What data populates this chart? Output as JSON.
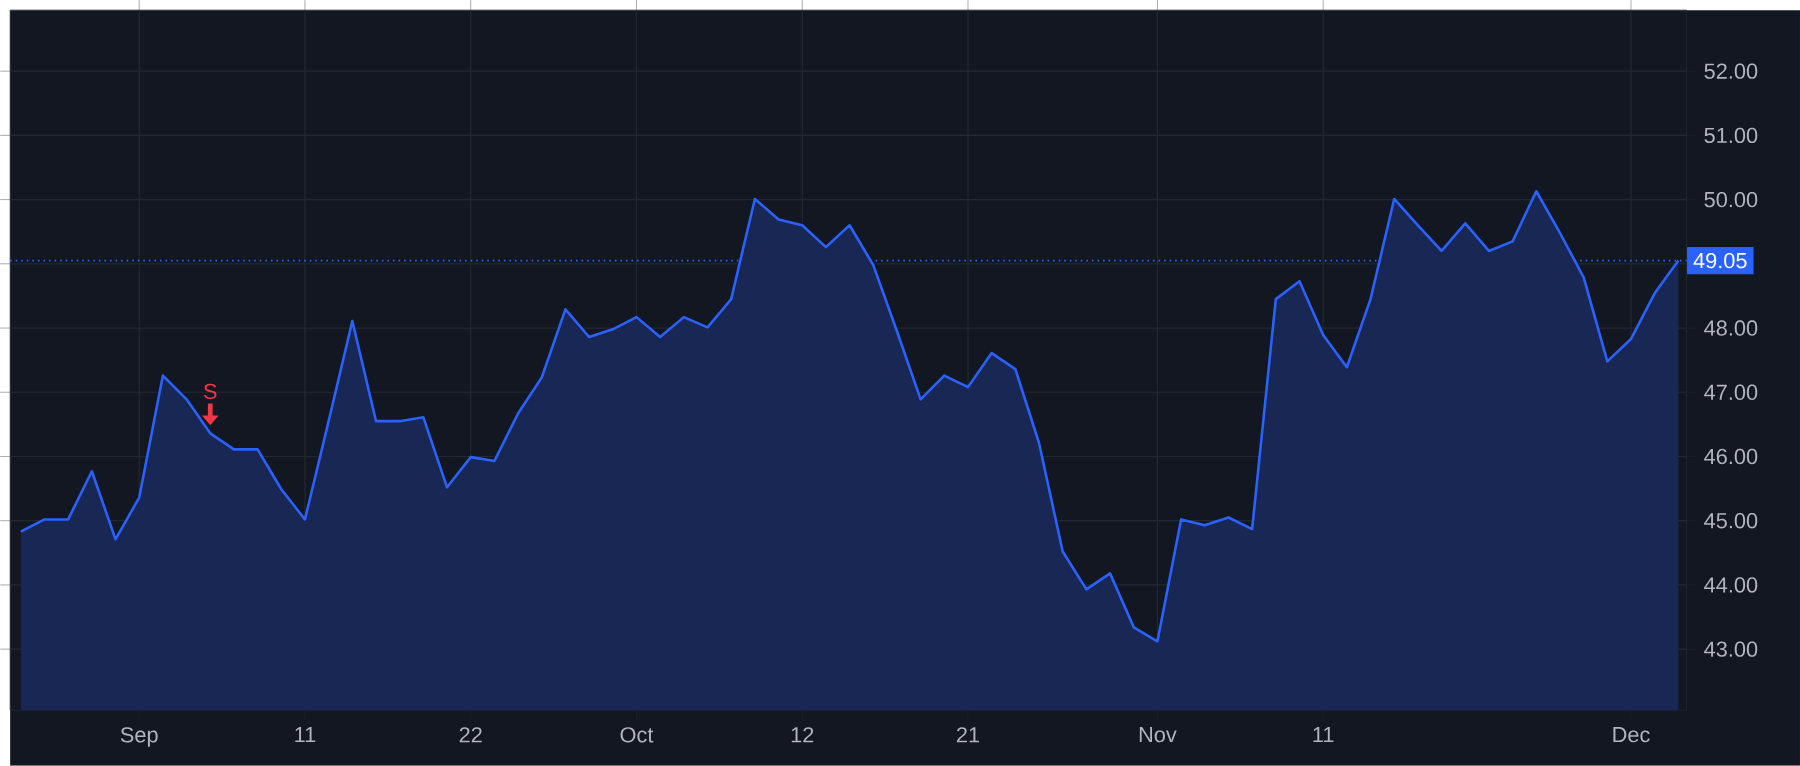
{
  "chart_data": {
    "type": "area",
    "categories": [
      null,
      null,
      null,
      null,
      null,
      "Sep",
      null,
      null,
      null,
      null,
      null,
      null,
      "11",
      null,
      null,
      null,
      null,
      null,
      null,
      "22",
      null,
      null,
      null,
      null,
      null,
      null,
      "Oct",
      null,
      null,
      null,
      null,
      null,
      null,
      "12",
      null,
      null,
      null,
      null,
      null,
      null,
      "21",
      null,
      null,
      null,
      null,
      null,
      null,
      null,
      "Nov",
      null,
      null,
      null,
      null,
      null,
      null,
      "11",
      null,
      null,
      null,
      null,
      null,
      null,
      null,
      null,
      null,
      null,
      null,
      null,
      "Dec",
      null,
      null
    ],
    "series": [
      {
        "color": "#2962ff",
        "values": [
          44.83,
          45.02,
          45.02,
          45.77,
          44.71,
          45.36,
          47.26,
          46.89,
          46.36,
          46.11,
          46.11,
          45.49,
          45.02,
          46.55,
          48.11,
          46.55,
          46.55,
          46.61,
          45.52,
          45.99,
          45.93,
          46.67,
          47.23,
          48.29,
          47.86,
          47.98,
          48.17,
          47.86,
          48.17,
          48.01,
          48.45,
          50.01,
          49.69,
          49.6,
          49.26,
          49.6,
          48.98,
          47.95,
          46.89,
          47.26,
          47.08,
          47.61,
          47.36,
          46.21,
          44.52,
          43.93,
          44.18,
          43.34,
          43.12,
          45.02,
          44.93,
          45.05,
          44.87,
          48.45,
          48.73,
          47.89,
          47.39,
          48.45,
          50.01,
          49.6,
          49.2,
          49.63,
          49.2,
          49.35,
          50.13,
          49.48,
          48.79,
          47.48,
          47.83,
          48.54,
          49.05
        ]
      }
    ],
    "ylim": [
      42.05,
      52.95
    ],
    "yticks": [
      {
        "value": 43,
        "label": "43.00"
      },
      {
        "value": 44,
        "label": "44.00"
      },
      {
        "value": 45,
        "label": "45.00"
      },
      {
        "value": 46,
        "label": "46.00"
      },
      {
        "value": 47,
        "label": "47.00"
      },
      {
        "value": 48,
        "label": "48.00"
      },
      {
        "value": 49,
        "label": null
      },
      {
        "value": 50,
        "label": "50.00"
      },
      {
        "value": 51,
        "label": "51.00"
      },
      {
        "value": 52,
        "label": "52.00"
      }
    ],
    "grid": true,
    "ref_lines": [
      {
        "axis": "y",
        "value": 49.05,
        "label": "49.05",
        "color": "#2962ff",
        "line_style": "dotted"
      }
    ],
    "annotations": [
      {
        "text": "S",
        "y": 46.36
      }
    ]
  }
}
